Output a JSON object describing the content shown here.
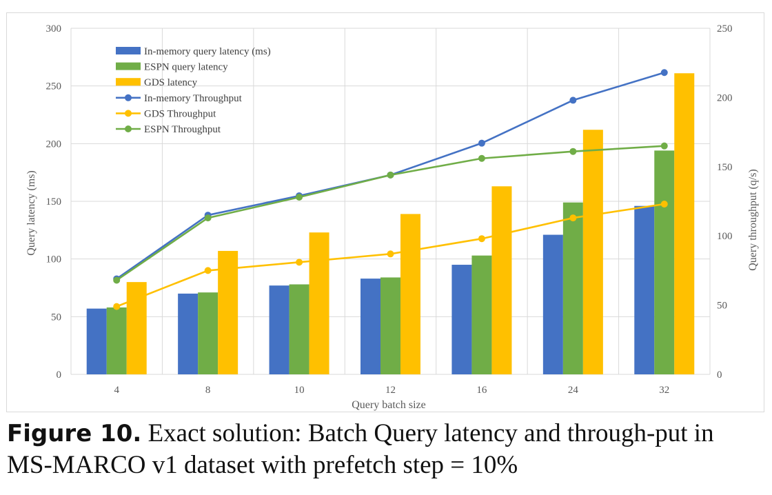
{
  "chart_data": {
    "type": "bar",
    "categories": [
      "4",
      "8",
      "10",
      "12",
      "16",
      "24",
      "32"
    ],
    "xlabel": "Query batch size",
    "ylabel": "Query latency (ms)",
    "y2label": "Query throughput (q/s)",
    "ylim": [
      0,
      300
    ],
    "y2lim": [
      0,
      250
    ],
    "yticks": [
      "0",
      "50",
      "100",
      "150",
      "200",
      "250",
      "300"
    ],
    "y2ticks": [
      "0",
      "50",
      "100",
      "150",
      "200",
      "250"
    ],
    "grid": true,
    "legend_position": "top-left",
    "series": [
      {
        "name": "In-memory query latency (ms)",
        "type": "bar",
        "axis": "left",
        "color": "#4472C4",
        "values": [
          57,
          70,
          77,
          83,
          95,
          121,
          146
        ]
      },
      {
        "name": "ESPN query latency",
        "type": "bar",
        "axis": "left",
        "color": "#70AD47",
        "values": [
          58,
          71,
          78,
          84,
          103,
          149,
          194
        ]
      },
      {
        "name": "GDS latency",
        "type": "bar",
        "axis": "left",
        "color": "#FFC000",
        "values": [
          80,
          107,
          123,
          139,
          163,
          212,
          261
        ]
      },
      {
        "name": "In-memory Throughput",
        "type": "line",
        "axis": "right",
        "color": "#4472C4",
        "values": [
          69,
          115,
          129,
          144,
          167,
          198,
          218
        ]
      },
      {
        "name": "GDS Throughput",
        "type": "line",
        "axis": "right",
        "color": "#FFC000",
        "values": [
          49,
          75,
          81,
          87,
          98,
          113,
          123
        ]
      },
      {
        "name": "ESPN Throughput",
        "type": "line",
        "axis": "right",
        "color": "#70AD47",
        "values": [
          68,
          113,
          128,
          144,
          156,
          161,
          165
        ]
      }
    ]
  },
  "caption": {
    "label": "Figure 10.",
    "text": " Exact solution: Batch Query latency and through-put in MS-MARCO v1 dataset with prefetch step = 10%"
  }
}
